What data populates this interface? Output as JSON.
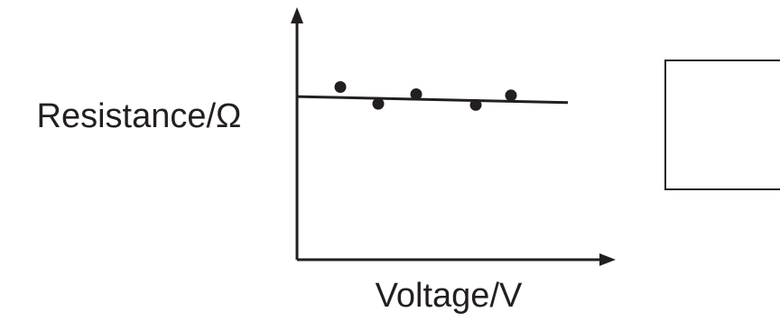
{
  "chart_data": {
    "type": "scatter",
    "xlabel": "Voltage/V",
    "ylabel": "Resistance/Ω",
    "xlim": [
      0,
      10
    ],
    "ylim": [
      0,
      10
    ],
    "x_ticks": [],
    "y_ticks": [],
    "points": [
      {
        "x": 1.6,
        "y": 7.2
      },
      {
        "x": 3.0,
        "y": 6.5
      },
      {
        "x": 4.4,
        "y": 6.9
      },
      {
        "x": 6.6,
        "y": 6.45
      },
      {
        "x": 7.9,
        "y": 6.85
      }
    ],
    "fit_line": {
      "x": [
        0,
        10
      ],
      "y": [
        6.8,
        6.55
      ]
    },
    "grid": false,
    "legend": "none"
  }
}
